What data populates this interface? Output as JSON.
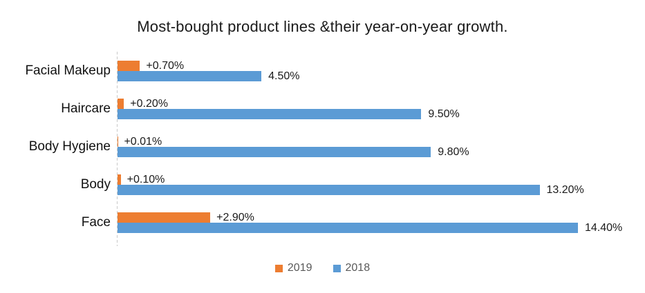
{
  "chart_data": {
    "type": "bar",
    "orientation": "horizontal",
    "title": "Most-bought product lines &their year-on-year growth.",
    "categories": [
      "Facial Makeup",
      "Haircare",
      "Body Hygiene",
      "Body",
      "Face"
    ],
    "series": [
      {
        "name": "2019",
        "color": "#ED7D31",
        "values": [
          0.7,
          0.2,
          0.01,
          0.1,
          2.9
        ],
        "data_labels": [
          "+0.70%",
          "+0.20%",
          "+0.01%",
          "+0.10%",
          "+2.90%"
        ]
      },
      {
        "name": "2018",
        "color": "#5B9BD5",
        "values": [
          4.5,
          9.5,
          9.8,
          13.2,
          14.4
        ],
        "data_labels": [
          "4.50%",
          "9.50%",
          "9.80%",
          "13.20%",
          "14.40%"
        ]
      }
    ],
    "xlim": [
      0,
      16
    ],
    "grid": false,
    "legend_position": "bottom",
    "axis_color": "#c9c9c9",
    "label_color": "#1a1a1a",
    "legend_text_color": "#595959"
  }
}
